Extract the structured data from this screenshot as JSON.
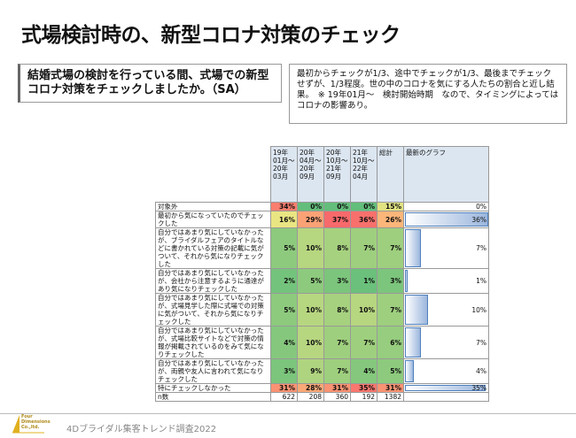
{
  "header": {
    "title": "式場検討時の、新型コロナ対策のチェック"
  },
  "question": "結婚式場の検討を行っている間、式場での新型コロナ対策をチェックしましたか。（SA）",
  "note": "最初からチェックが1/3、途中でチェックが1/3、最後までチェックせずが、1/3程度。世の中のコロナを気にする人たちの割合と近し結果。　※ 19年01月～　検討開始時期　なので、タイミングによってはコロナの影響あり。",
  "table": {
    "columns": [
      "19年01月～20年03月",
      "20年04月～20年09月",
      "20年10月～21年09月",
      "21年10月～22年04月",
      "総計",
      "最新のグラフ"
    ],
    "rows": [
      {
        "label": "対象外",
        "cells": [
          "34%",
          "0%",
          "0%",
          "0%",
          "15%"
        ],
        "graph": 0,
        "graph_label": "0%"
      },
      {
        "label": "最初から気になっていたのでチェックした",
        "cells": [
          "16%",
          "29%",
          "37%",
          "36%",
          "26%"
        ],
        "graph": 36,
        "graph_label": "36%"
      },
      {
        "label": "自分ではあまり気にしていなかったが、ブライダルフェアのタイトルなどに書かれている対策の記載に気がついて、それから気になりチェックした",
        "cells": [
          "5%",
          "10%",
          "8%",
          "7%",
          "7%"
        ],
        "graph": 7,
        "graph_label": "7%"
      },
      {
        "label": "自分ではあまり気にしていなかったが、会社から注意するように通達があり気になりチェックした",
        "cells": [
          "2%",
          "5%",
          "3%",
          "1%",
          "3%"
        ],
        "graph": 1,
        "graph_label": "1%"
      },
      {
        "label": "自分ではあまり気にしていなかったが、式場見学した際に式場での対策に気がついて、それから気になりチェックした",
        "cells": [
          "5%",
          "10%",
          "8%",
          "10%",
          "7%"
        ],
        "graph": 10,
        "graph_label": "10%"
      },
      {
        "label": "自分ではあまり気にしていなかったが、式場比較サイトなどで対策の情報が掲載されているのをみて気になりチェックした",
        "cells": [
          "4%",
          "10%",
          "7%",
          "7%",
          "6%"
        ],
        "graph": 7,
        "graph_label": "7%"
      },
      {
        "label": "自分ではあまり気にしていなかったが、両親や友人に言われて気になりチェックした",
        "cells": [
          "3%",
          "9%",
          "7%",
          "4%",
          "5%"
        ],
        "graph": 4,
        "graph_label": "4%"
      },
      {
        "label": "特にチェックしなかった",
        "cells": [
          "31%",
          "28%",
          "31%",
          "35%",
          "31%"
        ],
        "graph": 35,
        "graph_label": "35%"
      }
    ],
    "n_row": {
      "label": "n数",
      "cells": [
        "622",
        "208",
        "360",
        "192",
        "1382"
      ]
    }
  },
  "footer": {
    "logo": "Four Dimensions Co.,ltd.",
    "survey": "4Dブライダル集客トレンド調査2022"
  }
}
